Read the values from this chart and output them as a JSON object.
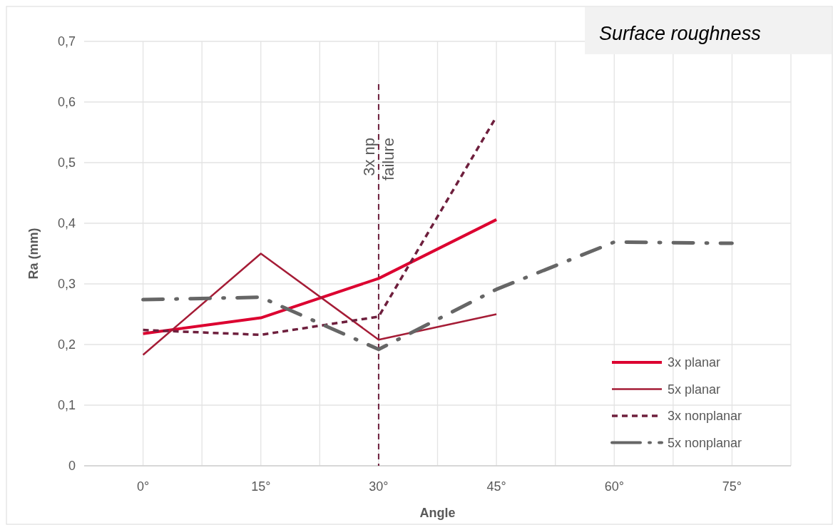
{
  "chart_data": {
    "type": "line",
    "title": "Surface roughness",
    "xlabel": "Angle",
    "ylabel": "Ra (mm)",
    "categories": [
      "0°",
      "15°",
      "30°",
      "45°",
      "60°",
      "75°"
    ],
    "series": [
      {
        "name": "3x planar",
        "color": "#dc0030",
        "line_style": "solid",
        "values": [
          0.218,
          0.244,
          0.309,
          0.406,
          null,
          null
        ]
      },
      {
        "name": "5x planar",
        "color": "#a51c36",
        "line_style": "solid",
        "values": [
          0.183,
          0.35,
          0.208,
          0.25,
          null,
          null
        ]
      },
      {
        "name": "3x nonplanar",
        "color": "#6e1f3d",
        "line_style": "dashed",
        "values": [
          0.224,
          0.216,
          0.246,
          0.576,
          null,
          null
        ]
      },
      {
        "name": "5x nonplanar",
        "color": "#666666",
        "line_style": "dashdot",
        "values": [
          0.274,
          0.278,
          0.192,
          0.291,
          0.369,
          0.367
        ]
      }
    ],
    "ylim": [
      0,
      0.7
    ],
    "yticks": [
      {
        "value": 0,
        "label": "0"
      },
      {
        "value": 0.1,
        "label": "0,1"
      },
      {
        "value": 0.2,
        "label": "0,2"
      },
      {
        "value": 0.3,
        "label": "0,3"
      },
      {
        "value": 0.4,
        "label": "0,4"
      },
      {
        "value": 0.5,
        "label": "0,5"
      },
      {
        "value": 0.6,
        "label": "0,6"
      },
      {
        "value": 0.7,
        "label": "0,7"
      }
    ],
    "ref_lines": [
      {
        "axis": "x",
        "value": "30°",
        "label": "3x np failure",
        "color": "#6e1f3d",
        "line_style": "dashed"
      }
    ],
    "grid": true,
    "legend": "bottom right"
  }
}
